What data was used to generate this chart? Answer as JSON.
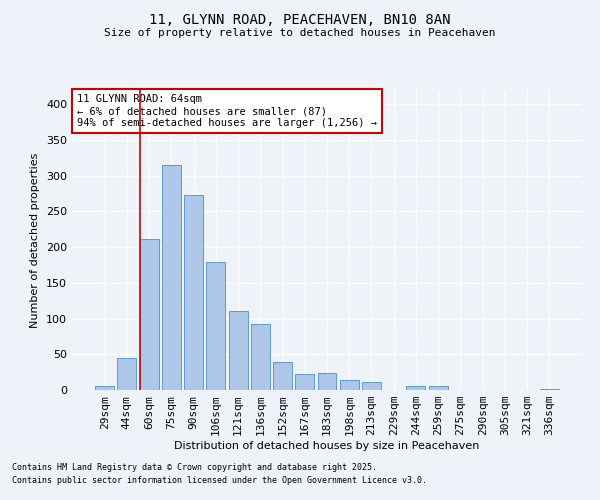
{
  "title1": "11, GLYNN ROAD, PEACEHAVEN, BN10 8AN",
  "title2": "Size of property relative to detached houses in Peacehaven",
  "xlabel": "Distribution of detached houses by size in Peacehaven",
  "ylabel": "Number of detached properties",
  "categories": [
    "29sqm",
    "44sqm",
    "60sqm",
    "75sqm",
    "90sqm",
    "106sqm",
    "121sqm",
    "136sqm",
    "152sqm",
    "167sqm",
    "183sqm",
    "198sqm",
    "213sqm",
    "229sqm",
    "244sqm",
    "259sqm",
    "275sqm",
    "290sqm",
    "305sqm",
    "321sqm",
    "336sqm"
  ],
  "values": [
    5,
    45,
    212,
    315,
    273,
    179,
    110,
    93,
    39,
    22,
    24,
    14,
    11,
    0,
    5,
    6,
    0,
    0,
    0,
    0,
    2
  ],
  "bar_color": "#aec6e8",
  "bar_edge_color": "#5b9bd5",
  "vline_color": "#cc0000",
  "annotation_box_text": "11 GLYNN ROAD: 64sqm\n← 6% of detached houses are smaller (87)\n94% of semi-detached houses are larger (1,256) →",
  "annotation_box_color": "#cc0000",
  "annotation_box_bg": "#ffffff",
  "ylim": [
    0,
    420
  ],
  "yticks": [
    0,
    50,
    100,
    150,
    200,
    250,
    300,
    350,
    400
  ],
  "footnote1": "Contains HM Land Registry data © Crown copyright and database right 2025.",
  "footnote2": "Contains public sector information licensed under the Open Government Licence v3.0.",
  "background_color": "#eef2f9",
  "grid_color": "#ffffff"
}
